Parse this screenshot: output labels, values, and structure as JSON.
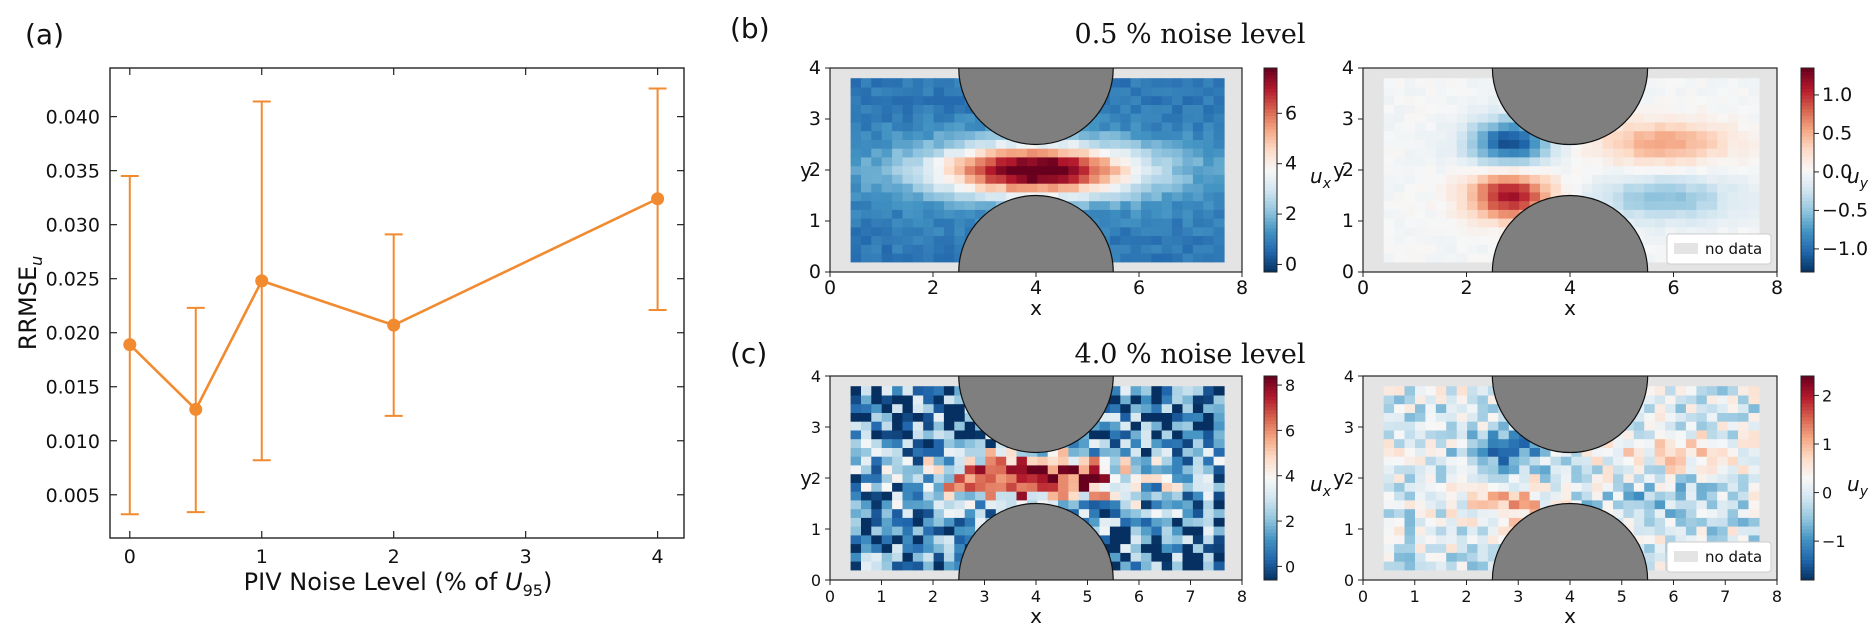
{
  "panel_labels": {
    "a": "(a)",
    "b": "(b)",
    "c": "(c)"
  },
  "titles": {
    "b": "0.5 % noise level",
    "c": "4.0 % noise level"
  },
  "legend_no_data": "no data",
  "colorbar_labels": {
    "ux": "u",
    "ux_sub": "x",
    "uy": "u",
    "uy_sub": "y"
  },
  "heatmap_axis": {
    "xlabel": "x",
    "ylabel": "y"
  },
  "chart_data": [
    {
      "type": "line",
      "panel": "(a)",
      "title": "",
      "xlabel_main": "PIV Noise Level (% of ",
      "xlabel_var": "U",
      "xlabel_sub": "95",
      "xlabel_end": ")",
      "ylabel_main": "RRMSE",
      "ylabel_sub": "u",
      "xlim": [
        -0.15,
        4.2
      ],
      "ylim": [
        0.001,
        0.0445
      ],
      "xticks": [
        0,
        1,
        2,
        3,
        4
      ],
      "yticks": [
        0.005,
        0.01,
        0.015,
        0.02,
        0.025,
        0.03,
        0.035,
        0.04
      ],
      "ytick_labels": [
        "0.005",
        "0.010",
        "0.015",
        "0.020",
        "0.025",
        "0.030",
        "0.035",
        "0.040"
      ],
      "color": "#f28a30",
      "x": [
        0,
        0.5,
        1,
        2,
        4
      ],
      "y": [
        0.0189,
        0.0129,
        0.0248,
        0.0207,
        0.0324
      ],
      "yerr_low": [
        0.0032,
        0.0034,
        0.0082,
        0.0123,
        0.0221
      ],
      "yerr_high": [
        0.0345,
        0.0223,
        0.0414,
        0.0291,
        0.0426
      ]
    },
    {
      "type": "heatmap",
      "panel": "(b) left",
      "field": "ux",
      "noise": 0.5,
      "xlim": [
        0,
        8
      ],
      "ylim": [
        0,
        4
      ],
      "xticks": [
        0,
        2,
        4,
        6,
        8
      ],
      "yticks": [
        0,
        1,
        2,
        3,
        4
      ],
      "colorbar_ticks": [
        0,
        2,
        4,
        6
      ],
      "colorbar_range": [
        -0.3,
        7.8
      ]
    },
    {
      "type": "heatmap",
      "panel": "(b) right",
      "field": "uy",
      "noise": 0.5,
      "xlim": [
        0,
        8
      ],
      "ylim": [
        0,
        4
      ],
      "xticks": [
        0,
        2,
        4,
        6,
        8
      ],
      "yticks": [
        0,
        1,
        2,
        3,
        4
      ],
      "colorbar_ticks": [
        1.0,
        0.5,
        0.0,
        -0.5,
        -1.0
      ],
      "colorbar_tick_labels": [
        "1.0",
        "0.5",
        "0.0",
        "−0.5",
        "−1.0"
      ],
      "colorbar_range": [
        -1.3,
        1.35
      ]
    },
    {
      "type": "heatmap",
      "panel": "(c) left",
      "field": "ux",
      "noise": 4.0,
      "xlim": [
        0,
        8
      ],
      "ylim": [
        0,
        4
      ],
      "xticks": [
        0,
        1,
        2,
        3,
        4,
        5,
        6,
        7,
        8
      ],
      "yticks": [
        0,
        1,
        2,
        3,
        4
      ],
      "colorbar_ticks": [
        0,
        2,
        4,
        6,
        8
      ],
      "colorbar_range": [
        -0.6,
        8.4
      ]
    },
    {
      "type": "heatmap",
      "panel": "(c) right",
      "field": "uy",
      "noise": 4.0,
      "xlim": [
        0,
        8
      ],
      "ylim": [
        0,
        4
      ],
      "xticks": [
        0,
        1,
        2,
        3,
        4,
        5,
        6,
        7,
        8
      ],
      "yticks": [
        0,
        1,
        2,
        3,
        4
      ],
      "colorbar_ticks": [
        2,
        1,
        0,
        -1
      ],
      "colorbar_tick_labels": [
        "2",
        "1",
        "0",
        "−1"
      ],
      "colorbar_range": [
        -1.8,
        2.4
      ]
    }
  ]
}
